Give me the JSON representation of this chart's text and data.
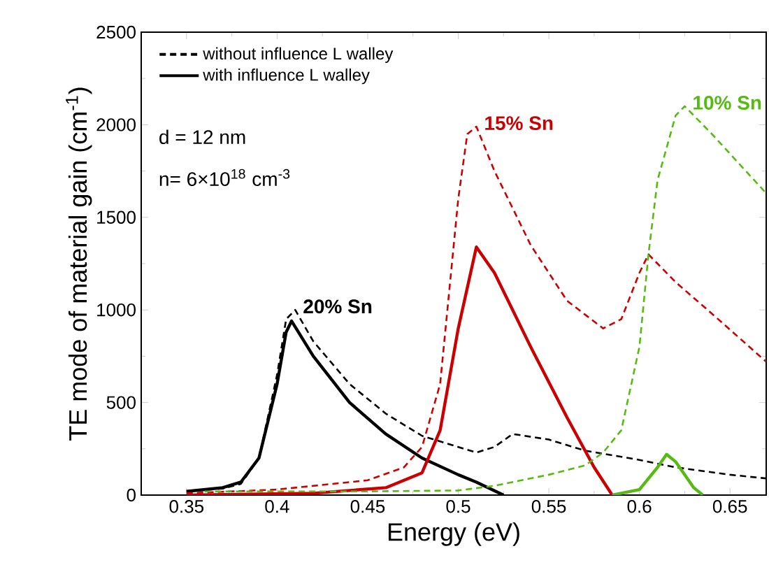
{
  "chart_data": {
    "type": "line",
    "xlabel": "Energy (eV)",
    "ylabel": "TE mode of material gain (cm$^{-1}$)",
    "xlim": [
      0.325,
      0.67
    ],
    "ylim": [
      0,
      2500
    ],
    "xticks": [
      0.35,
      0.4,
      0.45,
      0.5,
      0.55,
      0.6,
      0.65
    ],
    "yticks": [
      0,
      500,
      1000,
      1500,
      2000,
      2500
    ],
    "legend": "top left",
    "grid": false,
    "annotations": [
      "d = 12 nm",
      "n= 6×10$^{18}$ cm$^{-3}$",
      {
        "text": "20% Sn",
        "x": 0.41,
        "y": 1000
      },
      {
        "text": "15% Sn",
        "x": 0.51,
        "y": 1990
      },
      {
        "text": "10% Sn",
        "x": 0.625,
        "y": 2100
      }
    ],
    "series": [
      {
        "name": "without influence L walley",
        "color": "#000000",
        "line_style": "dashed",
        "x": [
          0.35,
          0.37,
          0.38,
          0.39,
          0.4,
          0.405,
          0.41,
          0.42,
          0.44,
          0.46,
          0.48,
          0.5,
          0.51,
          0.52,
          0.53,
          0.55,
          0.57,
          0.6,
          0.62,
          0.65,
          0.67
        ],
        "values": [
          20,
          35,
          60,
          200,
          650,
          950,
          1000,
          830,
          600,
          440,
          320,
          260,
          230,
          260,
          330,
          300,
          240,
          190,
          150,
          110,
          90
        ]
      },
      {
        "name": "with influence L walley",
        "color": "#000000",
        "line_style": "solid",
        "x": [
          0.35,
          0.37,
          0.38,
          0.39,
          0.4,
          0.405,
          0.408,
          0.42,
          0.44,
          0.46,
          0.48,
          0.5,
          0.51,
          0.525
        ],
        "values": [
          20,
          40,
          70,
          200,
          600,
          880,
          940,
          750,
          500,
          330,
          200,
          110,
          70,
          0
        ]
      },
      {
        "color": "#cc0000",
        "line_style": "dashed",
        "x": [
          0.35,
          0.4,
          0.45,
          0.47,
          0.48,
          0.49,
          0.5,
          0.505,
          0.51,
          0.52,
          0.54,
          0.56,
          0.58,
          0.59,
          0.6,
          0.605,
          0.62,
          0.64,
          0.67
        ],
        "values": [
          10,
          30,
          80,
          150,
          260,
          600,
          1600,
          1950,
          1990,
          1750,
          1350,
          1050,
          900,
          950,
          1200,
          1300,
          1150,
          980,
          720
        ]
      },
      {
        "color": "#cc0000",
        "line_style": "solid",
        "x": [
          0.35,
          0.42,
          0.46,
          0.48,
          0.49,
          0.5,
          0.51,
          0.52,
          0.54,
          0.56,
          0.575,
          0.585
        ],
        "values": [
          0,
          10,
          40,
          120,
          350,
          900,
          1340,
          1200,
          800,
          420,
          150,
          0
        ]
      },
      {
        "color": "#55bb11",
        "line_style": "dashed",
        "x": [
          0.36,
          0.45,
          0.5,
          0.52,
          0.55,
          0.57,
          0.58,
          0.59,
          0.6,
          0.605,
          0.61,
          0.62,
          0.625,
          0.64,
          0.67
        ],
        "values": [
          20,
          20,
          25,
          50,
          110,
          160,
          230,
          350,
          800,
          1300,
          1700,
          2050,
          2100,
          1950,
          1630
        ]
      },
      {
        "color": "#55bb11",
        "line_style": "solid",
        "x": [
          0.585,
          0.6,
          0.61,
          0.615,
          0.62,
          0.63,
          0.635
        ],
        "values": [
          0,
          30,
          150,
          220,
          180,
          40,
          0
        ]
      }
    ]
  }
}
